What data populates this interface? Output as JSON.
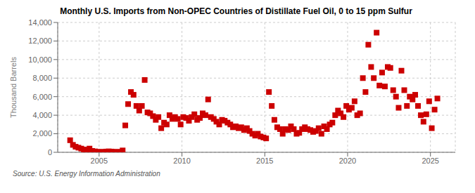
{
  "chart_data": {
    "type": "scatter",
    "title": "Monthly U.S. Imports from Non-OPEC Countries of Distillate Fuel Oil, 0 to 15 ppm Sulfur",
    "ylabel": "Thousand Barrels",
    "annotations": [
      "Source: U.S. Energy Information Administration"
    ],
    "color": "#cc0000",
    "marker": "square",
    "grid": true,
    "xlim": [
      2002.5,
      2026.5
    ],
    "xticks": [
      2005,
      2010,
      2015,
      2020,
      2025
    ],
    "ylim": [
      0,
      14000
    ],
    "yticks": [
      0,
      {
        "value": 2000,
        "label": "2,000"
      },
      {
        "value": 4000,
        "label": "4,000"
      },
      {
        "value": 6000,
        "label": "6,000"
      },
      {
        "value": 8000,
        "label": "8,000"
      },
      {
        "value": 10000,
        "label": "10,000"
      },
      {
        "value": 12000,
        "label": "12,000"
      },
      {
        "value": 14000,
        "label": "14,000"
      }
    ],
    "x": [
      2003.25,
      2003.42,
      2003.58,
      2003.75,
      2003.92,
      2004.08,
      2004.25,
      2004.42,
      2004.58,
      2004.75,
      2004.92,
      2005.08,
      2005.25,
      2005.42,
      2005.58,
      2005.75,
      2005.92,
      2006.08,
      2006.25,
      2006.42,
      2006.58,
      2006.75,
      2006.92,
      2007.08,
      2007.25,
      2007.42,
      2007.58,
      2007.75,
      2007.92,
      2008.08,
      2008.25,
      2008.42,
      2008.58,
      2008.75,
      2008.92,
      2009.08,
      2009.25,
      2009.42,
      2009.58,
      2009.75,
      2009.92,
      2010.08,
      2010.25,
      2010.42,
      2010.58,
      2010.75,
      2010.92,
      2011.08,
      2011.25,
      2011.42,
      2011.58,
      2011.75,
      2011.92,
      2012.08,
      2012.25,
      2012.42,
      2012.58,
      2012.75,
      2012.92,
      2013.08,
      2013.25,
      2013.42,
      2013.58,
      2013.75,
      2013.92,
      2014.08,
      2014.25,
      2014.42,
      2014.58,
      2014.75,
      2014.92,
      2015.08,
      2015.25,
      2015.42,
      2015.58,
      2015.75,
      2015.92,
      2016.08,
      2016.25,
      2016.42,
      2016.58,
      2016.75,
      2016.92,
      2017.08,
      2017.25,
      2017.42,
      2017.58,
      2017.75,
      2017.92,
      2018.08,
      2018.25,
      2018.42,
      2018.58,
      2018.75,
      2018.92,
      2019.08,
      2019.25,
      2019.42,
      2019.58,
      2019.75,
      2019.92,
      2020.08,
      2020.25,
      2020.42,
      2020.58,
      2020.75,
      2020.92,
      2021.08,
      2021.25,
      2021.42,
      2021.58,
      2021.75,
      2021.92,
      2022.08,
      2022.25,
      2022.42,
      2022.58,
      2022.75,
      2022.92,
      2023.08,
      2023.25,
      2023.42,
      2023.58,
      2023.75,
      2023.92,
      2024.08,
      2024.25,
      2024.42,
      2024.58,
      2024.75,
      2024.92,
      2025.08,
      2025.25,
      2025.42
    ],
    "values": [
      1300,
      800,
      600,
      500,
      400,
      300,
      250,
      400,
      150,
      100,
      50,
      30,
      50,
      80,
      100,
      80,
      50,
      30,
      50,
      200,
      2900,
      5200,
      6500,
      6200,
      5000,
      4500,
      5000,
      7800,
      4300,
      4200,
      3900,
      3500,
      3800,
      2600,
      3200,
      3000,
      4000,
      3600,
      3800,
      3600,
      3000,
      3800,
      3700,
      3400,
      3800,
      4100,
      3500,
      3700,
      4200,
      4000,
      5700,
      3800,
      3600,
      3300,
      3000,
      3500,
      3400,
      3200,
      3000,
      2700,
      2800,
      2600,
      2700,
      2400,
      2600,
      2300,
      2000,
      1800,
      2000,
      1700,
      1600,
      1500,
      6500,
      5000,
      3500,
      2700,
      2500,
      2000,
      2500,
      2400,
      2800,
      2500,
      2000,
      2100,
      2500,
      2700,
      2500,
      2400,
      2200,
      2300,
      2600,
      2000,
      2800,
      2500,
      3000,
      3200,
      4000,
      4500,
      4200,
      3800,
      5000,
      4600,
      4800,
      5500,
      4000,
      4200,
      8000,
      6500,
      11600,
      9200,
      8000,
      12900,
      7200,
      8600,
      7100,
      9200,
      9100,
      6700,
      6000,
      4800,
      8800,
      6700,
      5000,
      6000,
      5700,
      6200,
      5000,
      4000,
      3300,
      4100,
      5500,
      2600,
      4600,
      5800
    ]
  }
}
